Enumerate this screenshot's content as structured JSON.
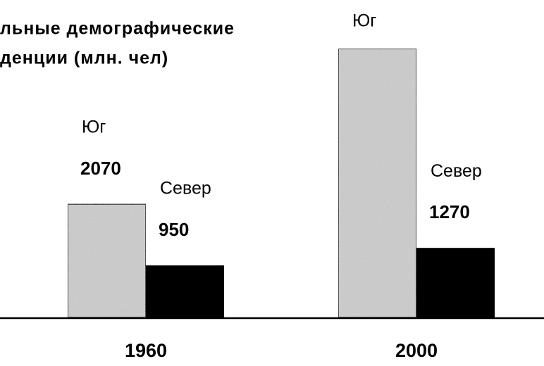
{
  "chart_data": {
    "type": "bar",
    "title_lines": [
      "льные демографические",
      "денции (млн. чел)"
    ],
    "categories": [
      "1960",
      "2000"
    ],
    "series": [
      {
        "name": "Юг",
        "color": "#cdcdcd",
        "values": [
          2070,
          4910
        ],
        "value_labels": [
          "2070",
          null
        ]
      },
      {
        "name": "Север",
        "color": "#000000",
        "values": [
          950,
          1270
        ],
        "value_labels": [
          "950",
          "1270"
        ]
      }
    ],
    "ylim": [
      0,
      5000
    ]
  }
}
